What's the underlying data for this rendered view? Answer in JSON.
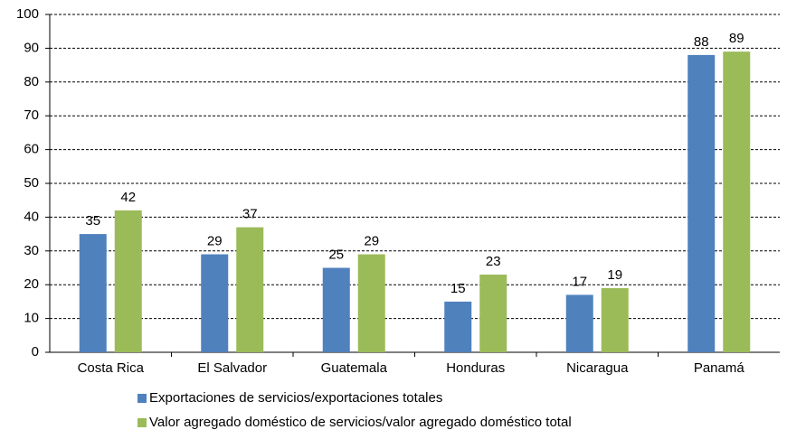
{
  "chart_data": {
    "type": "bar",
    "categories": [
      "Costa Rica",
      "El Salvador",
      "Guatemala",
      "Honduras",
      "Nicaragua",
      "Panamá"
    ],
    "series": [
      {
        "name": "Exportaciones de servicios/exportaciones totales",
        "color": "#4f81bd",
        "values": [
          35,
          29,
          25,
          15,
          17,
          88
        ]
      },
      {
        "name": "Valor agregado doméstico de servicios/valor agregado doméstico total",
        "color": "#9bbb59",
        "values": [
          42,
          37,
          29,
          23,
          19,
          89
        ]
      }
    ],
    "ylim": [
      0,
      100
    ],
    "yticks": [
      0,
      10,
      20,
      30,
      40,
      50,
      60,
      70,
      80,
      90,
      100
    ],
    "grid": true,
    "legend": "bottom"
  }
}
